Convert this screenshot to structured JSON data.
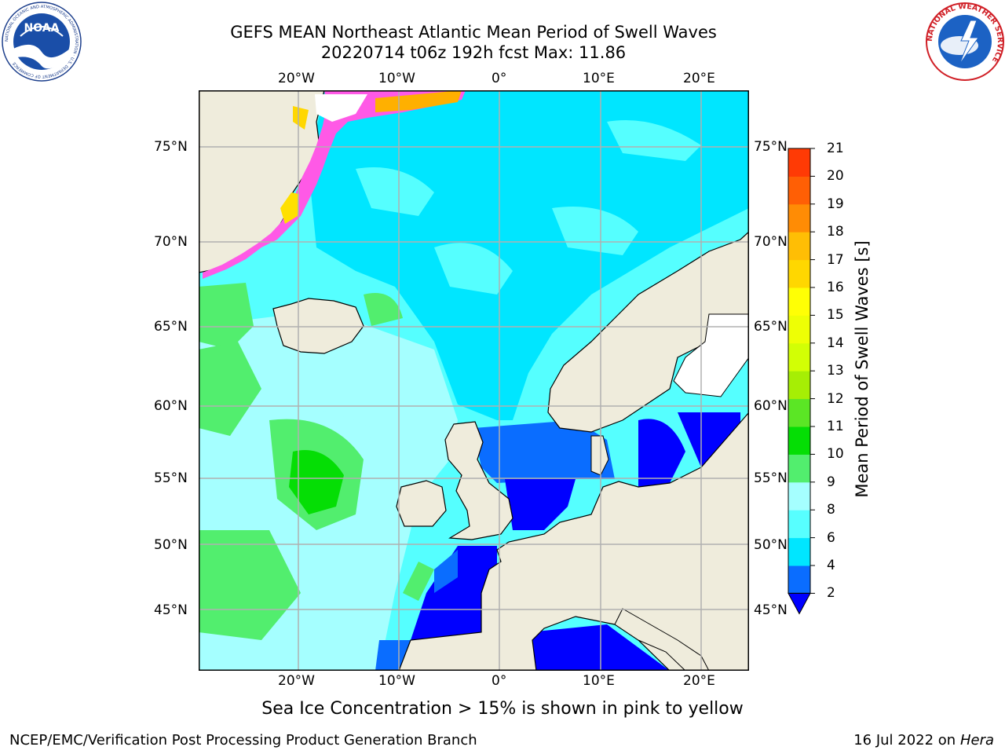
{
  "header": {
    "title_line1": "GEFS MEAN Northeast Atlantic Mean Period of Swell Waves",
    "title_line2": "20220714 t06z 192h fcst   Max: 11.86"
  },
  "logos": {
    "left": {
      "name": "NOAA",
      "ring_text": "NATIONAL OCEANIC AND ATMOSPHERIC ADMINISTRATION · U.S. DEPARTMENT OF COMMERCE"
    },
    "right": {
      "ring_text": "NATIONAL WEATHER SERVICE"
    }
  },
  "map": {
    "lon_labels": [
      "20°W",
      "10°W",
      "0°",
      "10°E",
      "20°E"
    ],
    "lat_labels": [
      "75°N",
      "70°N",
      "65°N",
      "60°N",
      "55°N",
      "50°N",
      "45°N"
    ],
    "colors": {
      "land": "#efecdc",
      "ice_white": "#ffffff",
      "gridline": "#b0b0b0"
    }
  },
  "colorbar": {
    "label": "Mean Period of Swell Waves [s]",
    "ticks": [
      "2",
      "4",
      "6",
      "8",
      "9",
      "10",
      "11",
      "12",
      "13",
      "14",
      "15",
      "16",
      "17",
      "18",
      "19",
      "20",
      "21"
    ],
    "colors": [
      "#0a6dff",
      "#00e6ff",
      "#57ffff",
      "#a5ffff",
      "#52ee6e",
      "#05de05",
      "#5be625",
      "#a6ee05",
      "#d2ff05",
      "#eeff05",
      "#ffff05",
      "#ffd700",
      "#ffbe05",
      "#ff8c05",
      "#ff5f05",
      "#ff3a05",
      "#ff0000"
    ],
    "under_color": "#0000ff"
  },
  "subtitle": "Sea Ice Concentration > 15% is shown in pink to yellow",
  "footer": {
    "left": "NCEP/EMC/Verification Post Processing Product Generation Branch",
    "right_date": "16 Jul 2022 on ",
    "right_machine": "Hera"
  }
}
